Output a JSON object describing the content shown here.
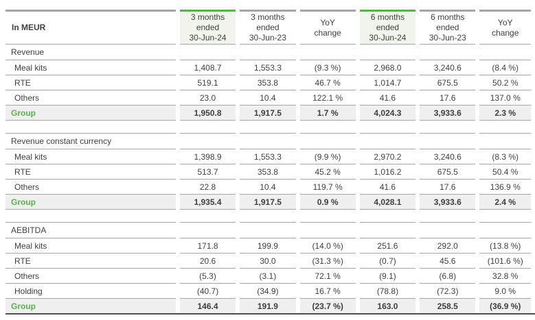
{
  "colors": {
    "accent_green": "#5bb04c",
    "row_line": "#a5a5a5",
    "group_bg": "#efefef",
    "highlight_bg": "#f1f4ed",
    "text": "#3e3e3d",
    "bottom_rule": "#4d4d4d"
  },
  "table": {
    "unit_label": "In MEUR",
    "columns": [
      {
        "id": "3m-ended-30-jun-24",
        "lines": [
          "3 months",
          "ended",
          "30-Jun-24"
        ],
        "highlight": true
      },
      {
        "id": "3m-ended-30-jun-23",
        "lines": [
          "3 months",
          "ended",
          "30-Jun-23"
        ],
        "highlight": false
      },
      {
        "id": "yoy-change-3m",
        "lines": [
          "YoY",
          "change"
        ],
        "highlight": false
      },
      {
        "id": "6m-ended-30-jun-24",
        "lines": [
          "6 months",
          "ended",
          "30-Jun-24"
        ],
        "highlight": true
      },
      {
        "id": "6m-ended-30-jun-23",
        "lines": [
          "6 months",
          "ended",
          "30-Jun-23"
        ],
        "highlight": false
      },
      {
        "id": "yoy-change-6m",
        "lines": [
          "YoY",
          "change"
        ],
        "highlight": false
      }
    ],
    "sections": [
      {
        "title": "Revenue",
        "rows": [
          {
            "label": "Meal kits",
            "values": [
              "1,408.7",
              "1,553.3",
              "(9.3 %)",
              "2,968.0",
              "3,240.6",
              "(8.4 %)"
            ]
          },
          {
            "label": "RTE",
            "values": [
              "519.1",
              "353.8",
              "46.7 %",
              "1,014.7",
              "675.5",
              "50.2 %"
            ]
          },
          {
            "label": "Others",
            "values": [
              "23.0",
              "10.4",
              "122.1 %",
              "41.6",
              "17.6",
              "137.0 %"
            ]
          }
        ],
        "total": {
          "label": "Group",
          "values": [
            "1,950.8",
            "1,917.5",
            "1.7 %",
            "4,024.3",
            "3,933.6",
            "2.3 %"
          ]
        }
      },
      {
        "title": "Revenue constant currency",
        "rows": [
          {
            "label": "Meal kits",
            "values": [
              "1,398.9",
              "1,553.3",
              "(9.9 %)",
              "2,970.2",
              "3,240.6",
              "(8.3 %)"
            ]
          },
          {
            "label": "RTE",
            "values": [
              "513.7",
              "353.8",
              "45.2 %",
              "1,016.2",
              "675.5",
              "50.4 %"
            ]
          },
          {
            "label": "Others",
            "values": [
              "22.8",
              "10.4",
              "119.7 %",
              "41.6",
              "17.6",
              "136.9 %"
            ]
          }
        ],
        "total": {
          "label": "Group",
          "values": [
            "1,935.4",
            "1,917.5",
            "0.9 %",
            "4,028.1",
            "3,933.6",
            "2.4 %"
          ]
        }
      },
      {
        "title": "AEBITDA",
        "rows": [
          {
            "label": "Meal kits",
            "values": [
              "171.8",
              "199.9",
              "(14.0 %)",
              "251.6",
              "292.0",
              "(13.8 %)"
            ]
          },
          {
            "label": "RTE",
            "values": [
              "20.6",
              "30.0",
              "(31.3 %)",
              "(0.7)",
              "45.6",
              "(101.6 %)"
            ]
          },
          {
            "label": "Others",
            "values": [
              "(5.3)",
              "(3.1)",
              "72.1 %",
              "(9.1)",
              "(6.8)",
              "32.8 %"
            ]
          },
          {
            "label": "Holding",
            "values": [
              "(40.7)",
              "(34.9)",
              "16.7 %",
              "(78.8)",
              "(72.3)",
              "9.0 %"
            ]
          }
        ],
        "total": {
          "label": "Group",
          "values": [
            "146.4",
            "191.9",
            "(23.7 %)",
            "163.0",
            "258.5",
            "(36.9 %)"
          ]
        }
      }
    ]
  }
}
